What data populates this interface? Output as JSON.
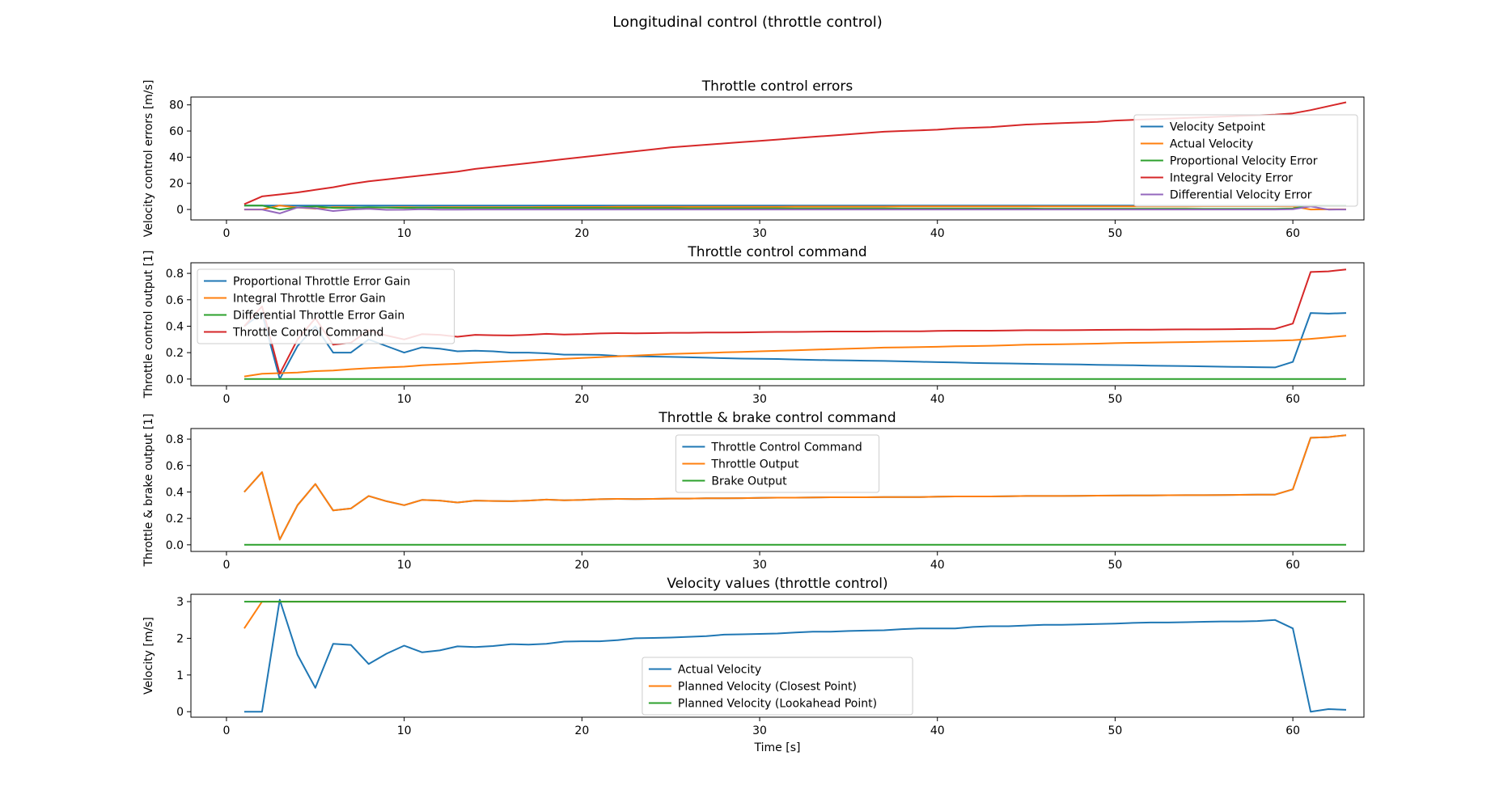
{
  "suptitle": "Longitudinal control (throttle control)",
  "colors": {
    "blue": "#1f77b4",
    "orange": "#ff7f0e",
    "green": "#2ca02c",
    "red": "#d62728",
    "purple": "#9467bd"
  },
  "chart_data": [
    {
      "type": "line",
      "title": "Throttle control errors",
      "xlabel": "",
      "ylabel": "Velocity control errors [m/s]",
      "xlim": [
        -2,
        64
      ],
      "ylim": [
        -8,
        86
      ],
      "xticks": [
        0,
        10,
        20,
        30,
        40,
        50,
        60
      ],
      "yticks": [
        0,
        20,
        40,
        60,
        80
      ],
      "legend": "right",
      "series": [
        {
          "name": "Velocity Setpoint",
          "color": "#1f77b4",
          "x_start": 1,
          "values": [
            3,
            3,
            3,
            3,
            3,
            3,
            3,
            3,
            3,
            3,
            3,
            3,
            3,
            3,
            3,
            3,
            3,
            3,
            3,
            3,
            3,
            3,
            3,
            3,
            3,
            3,
            3,
            3,
            3,
            3,
            3,
            3,
            3,
            3,
            3,
            3,
            3,
            3,
            3,
            3,
            3,
            3,
            3,
            3,
            3,
            3,
            3,
            3,
            3,
            3,
            3,
            3,
            3,
            3,
            3,
            3,
            3,
            3,
            3,
            3,
            3,
            3,
            3
          ]
        },
        {
          "name": "Actual Velocity",
          "color": "#ff7f0e",
          "x_start": 1,
          "values": [
            0,
            0,
            3.0,
            1.5,
            0.6,
            1.8,
            1.8,
            1.3,
            1.6,
            1.8,
            1.6,
            1.7,
            1.8,
            1.8,
            1.8,
            1.8,
            1.8,
            1.9,
            1.9,
            1.9,
            1.9,
            2.0,
            2.0,
            2.0,
            2.0,
            2.1,
            2.1,
            2.1,
            2.1,
            2.1,
            2.1,
            2.2,
            2.2,
            2.2,
            2.2,
            2.2,
            2.2,
            2.3,
            2.3,
            2.3,
            2.3,
            2.3,
            2.3,
            2.3,
            2.3,
            2.4,
            2.4,
            2.4,
            2.4,
            2.4,
            2.4,
            2.4,
            2.4,
            2.4,
            2.5,
            2.5,
            2.5,
            2.5,
            2.5,
            2.3,
            0.0,
            0.1,
            0.1
          ]
        },
        {
          "name": "Proportional Velocity Error",
          "color": "#2ca02c",
          "x_start": 1,
          "values": [
            3,
            3,
            0,
            1.5,
            2.4,
            1.2,
            1.2,
            1.7,
            1.4,
            1.2,
            1.4,
            1.3,
            1.2,
            1.2,
            1.2,
            1.2,
            1.2,
            1.1,
            1.1,
            1.1,
            1.1,
            1.0,
            1.0,
            1.0,
            1.0,
            0.9,
            0.9,
            0.9,
            0.9,
            0.9,
            0.9,
            0.8,
            0.8,
            0.8,
            0.8,
            0.8,
            0.8,
            0.7,
            0.7,
            0.7,
            0.7,
            0.7,
            0.7,
            0.7,
            0.7,
            0.6,
            0.6,
            0.6,
            0.6,
            0.6,
            0.6,
            0.6,
            0.6,
            0.6,
            0.5,
            0.5,
            0.5,
            0.5,
            0.5,
            0.7,
            3.0,
            2.9,
            2.9
          ]
        },
        {
          "name": "Integral Velocity Error",
          "color": "#d62728",
          "x_start": 1,
          "values": [
            4,
            10,
            11.5,
            13,
            15,
            17,
            19.5,
            21.5,
            23,
            24.5,
            26,
            27.5,
            29,
            31,
            32.5,
            34,
            35.5,
            37,
            38.5,
            40,
            41.5,
            43,
            44.5,
            46,
            47.5,
            48.5,
            49.5,
            50.5,
            51.5,
            52.5,
            53.5,
            54.5,
            55.5,
            56.5,
            57.5,
            58.5,
            59.5,
            60,
            60.5,
            61,
            62,
            62.5,
            63,
            64,
            65,
            65.5,
            66,
            66.5,
            67,
            68,
            68.5,
            69,
            69.5,
            70,
            70.5,
            71,
            71.5,
            72,
            72.5,
            73.5,
            76,
            79,
            82
          ]
        },
        {
          "name": "Differential Velocity Error",
          "color": "#9467bd",
          "x_start": 1,
          "values": [
            0,
            0,
            -3,
            1.5,
            0.9,
            -1.2,
            0,
            0.5,
            -0.3,
            -0.2,
            0.2,
            -0.1,
            -0.1,
            0,
            0,
            0,
            0,
            0,
            0,
            0,
            0,
            0,
            0,
            0,
            0,
            0,
            0,
            0,
            0,
            0,
            0,
            0,
            0,
            0,
            0,
            0,
            0,
            0,
            0,
            0,
            0,
            0,
            0,
            0,
            0,
            0,
            0,
            0,
            0,
            0,
            0,
            0,
            0,
            0,
            0,
            0,
            0,
            0,
            0,
            0.2,
            2.3,
            -0.1,
            0
          ]
        }
      ]
    },
    {
      "type": "line",
      "title": "Throttle control command",
      "xlabel": "",
      "ylabel": "Throttle control output [1]",
      "xlim": [
        -2,
        64
      ],
      "ylim": [
        -0.05,
        0.88
      ],
      "xticks": [
        0,
        10,
        20,
        30,
        40,
        50,
        60
      ],
      "yticks": [
        0.0,
        0.2,
        0.4,
        0.6,
        0.8
      ],
      "legend": "upper left",
      "series": [
        {
          "name": "Proportional Throttle Error Gain",
          "color": "#1f77b4",
          "x_start": 1,
          "values": [
            0.4,
            0.5,
            0.0,
            0.25,
            0.4,
            0.2,
            0.2,
            0.3,
            0.25,
            0.2,
            0.24,
            0.23,
            0.21,
            0.215,
            0.21,
            0.2,
            0.2,
            0.195,
            0.185,
            0.185,
            0.183,
            0.175,
            0.173,
            0.17,
            0.168,
            0.165,
            0.162,
            0.158,
            0.155,
            0.153,
            0.152,
            0.148,
            0.145,
            0.143,
            0.141,
            0.139,
            0.137,
            0.134,
            0.131,
            0.128,
            0.126,
            0.122,
            0.12,
            0.118,
            0.116,
            0.114,
            0.112,
            0.11,
            0.108,
            0.106,
            0.104,
            0.102,
            0.1,
            0.098,
            0.096,
            0.094,
            0.092,
            0.09,
            0.088,
            0.13,
            0.5,
            0.495,
            0.5
          ]
        },
        {
          "name": "Integral Throttle Error Gain",
          "color": "#ff7f0e",
          "x_start": 1,
          "values": [
            0.02,
            0.04,
            0.045,
            0.05,
            0.06,
            0.065,
            0.075,
            0.082,
            0.088,
            0.094,
            0.104,
            0.11,
            0.116,
            0.124,
            0.13,
            0.136,
            0.142,
            0.148,
            0.154,
            0.16,
            0.166,
            0.172,
            0.178,
            0.184,
            0.19,
            0.194,
            0.198,
            0.202,
            0.206,
            0.21,
            0.214,
            0.218,
            0.222,
            0.226,
            0.23,
            0.234,
            0.238,
            0.24,
            0.242,
            0.244,
            0.248,
            0.25,
            0.252,
            0.256,
            0.26,
            0.262,
            0.264,
            0.266,
            0.268,
            0.272,
            0.274,
            0.276,
            0.278,
            0.28,
            0.282,
            0.284,
            0.286,
            0.288,
            0.29,
            0.294,
            0.304,
            0.316,
            0.328
          ]
        },
        {
          "name": "Differential Throttle Error Gain",
          "color": "#2ca02c",
          "x_start": 1,
          "values": [
            0,
            0,
            0,
            0,
            0,
            0,
            0,
            0,
            0,
            0,
            0,
            0,
            0,
            0,
            0,
            0,
            0,
            0,
            0,
            0,
            0,
            0,
            0,
            0,
            0,
            0,
            0,
            0,
            0,
            0,
            0,
            0,
            0,
            0,
            0,
            0,
            0,
            0,
            0,
            0,
            0,
            0,
            0,
            0,
            0,
            0,
            0,
            0,
            0,
            0,
            0,
            0,
            0,
            0,
            0,
            0,
            0,
            0,
            0,
            0,
            0,
            0,
            0
          ]
        },
        {
          "name": "Throttle Control Command",
          "color": "#d62728",
          "x_start": 1,
          "values": [
            0.4,
            0.55,
            0.04,
            0.3,
            0.46,
            0.26,
            0.275,
            0.37,
            0.33,
            0.3,
            0.34,
            0.335,
            0.32,
            0.335,
            0.332,
            0.33,
            0.335,
            0.342,
            0.337,
            0.34,
            0.345,
            0.348,
            0.346,
            0.348,
            0.35,
            0.35,
            0.352,
            0.352,
            0.353,
            0.355,
            0.357,
            0.357,
            0.358,
            0.36,
            0.36,
            0.36,
            0.362,
            0.362,
            0.362,
            0.364,
            0.366,
            0.366,
            0.366,
            0.368,
            0.37,
            0.37,
            0.37,
            0.371,
            0.372,
            0.373,
            0.374,
            0.374,
            0.375,
            0.376,
            0.376,
            0.377,
            0.378,
            0.38,
            0.38,
            0.42,
            0.81,
            0.815,
            0.83
          ]
        }
      ]
    },
    {
      "type": "line",
      "title": "Throttle & brake control command",
      "xlabel": "",
      "ylabel": "Throttle & brake output [1]",
      "xlim": [
        -2,
        64
      ],
      "ylim": [
        -0.05,
        0.88
      ],
      "xticks": [
        0,
        10,
        20,
        30,
        40,
        50,
        60
      ],
      "yticks": [
        0.0,
        0.2,
        0.4,
        0.6,
        0.8
      ],
      "legend": "upper center",
      "series": [
        {
          "name": "Throttle Control Command",
          "color": "#1f77b4",
          "x_start": 1,
          "values": [
            0.4,
            0.55,
            0.04,
            0.3,
            0.46,
            0.26,
            0.275,
            0.37,
            0.33,
            0.3,
            0.34,
            0.335,
            0.32,
            0.335,
            0.332,
            0.33,
            0.335,
            0.342,
            0.337,
            0.34,
            0.345,
            0.348,
            0.346,
            0.348,
            0.35,
            0.35,
            0.352,
            0.352,
            0.353,
            0.355,
            0.357,
            0.357,
            0.358,
            0.36,
            0.36,
            0.36,
            0.362,
            0.362,
            0.362,
            0.364,
            0.366,
            0.366,
            0.366,
            0.368,
            0.37,
            0.37,
            0.37,
            0.371,
            0.372,
            0.373,
            0.374,
            0.374,
            0.375,
            0.376,
            0.376,
            0.377,
            0.378,
            0.38,
            0.38,
            0.42,
            0.81,
            0.815,
            0.83
          ]
        },
        {
          "name": "Throttle Output",
          "color": "#ff7f0e",
          "x_start": 1,
          "values": [
            0.4,
            0.55,
            0.04,
            0.3,
            0.46,
            0.26,
            0.275,
            0.37,
            0.33,
            0.3,
            0.34,
            0.335,
            0.32,
            0.335,
            0.332,
            0.33,
            0.335,
            0.342,
            0.337,
            0.34,
            0.345,
            0.348,
            0.346,
            0.348,
            0.35,
            0.35,
            0.352,
            0.352,
            0.353,
            0.355,
            0.357,
            0.357,
            0.358,
            0.36,
            0.36,
            0.36,
            0.362,
            0.362,
            0.362,
            0.364,
            0.366,
            0.366,
            0.366,
            0.368,
            0.37,
            0.37,
            0.37,
            0.371,
            0.372,
            0.373,
            0.374,
            0.374,
            0.375,
            0.376,
            0.376,
            0.377,
            0.378,
            0.38,
            0.38,
            0.42,
            0.81,
            0.815,
            0.83
          ]
        },
        {
          "name": "Brake Output",
          "color": "#2ca02c",
          "x_start": 1,
          "values": [
            0,
            0,
            0,
            0,
            0,
            0,
            0,
            0,
            0,
            0,
            0,
            0,
            0,
            0,
            0,
            0,
            0,
            0,
            0,
            0,
            0,
            0,
            0,
            0,
            0,
            0,
            0,
            0,
            0,
            0,
            0,
            0,
            0,
            0,
            0,
            0,
            0,
            0,
            0,
            0,
            0,
            0,
            0,
            0,
            0,
            0,
            0,
            0,
            0,
            0,
            0,
            0,
            0,
            0,
            0,
            0,
            0,
            0,
            0,
            0,
            0,
            0,
            0
          ]
        }
      ]
    },
    {
      "type": "line",
      "title": "Velocity values (throttle control)",
      "xlabel": "Time [s]",
      "ylabel": "Velocity [m/s]",
      "xlim": [
        -2,
        64
      ],
      "ylim": [
        -0.15,
        3.2
      ],
      "xticks": [
        0,
        10,
        20,
        30,
        40,
        50,
        60
      ],
      "yticks": [
        0,
        1,
        2,
        3
      ],
      "legend": "lower center",
      "series": [
        {
          "name": "Actual Velocity",
          "color": "#1f77b4",
          "x_start": 1,
          "values": [
            0,
            0,
            3.05,
            1.55,
            0.65,
            1.85,
            1.82,
            1.3,
            1.58,
            1.8,
            1.62,
            1.67,
            1.78,
            1.76,
            1.79,
            1.84,
            1.83,
            1.85,
            1.91,
            1.92,
            1.92,
            1.95,
            2.0,
            2.01,
            2.02,
            2.04,
            2.06,
            2.1,
            2.11,
            2.12,
            2.13,
            2.16,
            2.18,
            2.18,
            2.2,
            2.21,
            2.22,
            2.25,
            2.27,
            2.27,
            2.27,
            2.31,
            2.33,
            2.33,
            2.35,
            2.37,
            2.37,
            2.38,
            2.39,
            2.4,
            2.42,
            2.43,
            2.43,
            2.44,
            2.45,
            2.46,
            2.46,
            2.47,
            2.5,
            2.27,
            0.0,
            0.07,
            0.05
          ]
        },
        {
          "name": "Planned Velocity (Closest Point)",
          "color": "#ff7f0e",
          "x": [
            1,
            2,
            3,
            63
          ],
          "values": [
            2.27,
            3.0,
            3.0,
            3.0
          ]
        },
        {
          "name": "Planned Velocity (Lookahead Point)",
          "color": "#2ca02c",
          "x": [
            1,
            63
          ],
          "values": [
            3.0,
            3.0
          ]
        }
      ]
    }
  ]
}
